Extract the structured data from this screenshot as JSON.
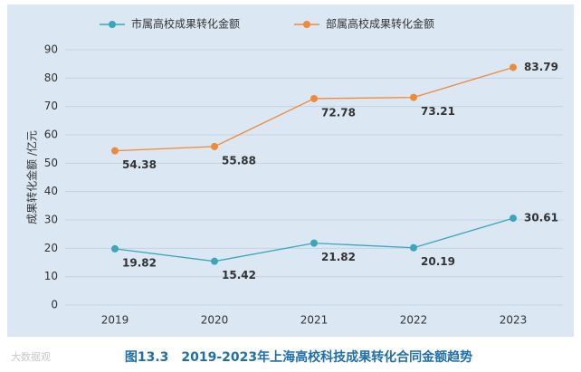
{
  "chart_data": {
    "type": "line",
    "y_label": "成果转化金额 /亿元",
    "caption": "图13.3　2019-2023年上海高校科技成果转化合同金额趋势",
    "watermark": "大数据观",
    "categories": [
      "2019",
      "2020",
      "2021",
      "2022",
      "2023"
    ],
    "series": [
      {
        "name": "市属高校成果转化金额",
        "color": "#3aa6b9",
        "values": [
          19.82,
          15.42,
          21.82,
          20.19,
          30.61
        ]
      },
      {
        "name": "部属高校成果转化金额",
        "color": "#ee8a3a",
        "values": [
          54.38,
          55.88,
          72.78,
          73.21,
          83.79
        ]
      }
    ],
    "ylim": [
      0,
      90
    ],
    "yticks": [
      0,
      10,
      20,
      30,
      40,
      50,
      60,
      70,
      80,
      90
    ],
    "grid": true
  }
}
